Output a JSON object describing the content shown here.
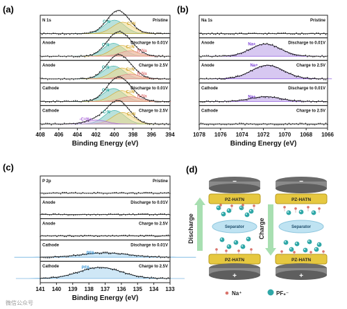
{
  "colors": {
    "frame": "#222222",
    "data_points": "#222222",
    "fit": "#111111",
    "cn_fill": "#7ec8c0",
    "cn_text": "#2aa9a0",
    "cdn_fill": "#f1d98b",
    "cdn_text": "#d1a52a",
    "nna_fill": "#f2b3b3",
    "nna_text": "#e07a7a",
    "cnplus_fill": "#d4b8e8",
    "cnplus_text": "#a35ad6",
    "na_fill": "#b69ae6",
    "na_text": "#7a3ed6",
    "pf6_fill": "#a7d3ef",
    "pf6_text": "#3a96d6",
    "electrode_gold": "#e6c840",
    "electrode_gray": "#7a7a7a",
    "separator": "#bfe3f2",
    "na_ion": "#d9736b",
    "pf6_ion": "#2fa7a7",
    "discharge_arrow": "#8fd19a",
    "charge_arrow": "#8fd19a"
  },
  "watermark": "微信公众号",
  "chart_data": [
    {
      "panel": "(a)",
      "type": "line",
      "element": "N 1s",
      "xlabel": "Binding Energy (eV)",
      "xlim": [
        408,
        394
      ],
      "xticks": [
        "408",
        "406",
        "404",
        "402",
        "400",
        "398",
        "396",
        "394"
      ],
      "stacked_spectra": [
        {
          "condition": "Pristine",
          "peaks": [
            {
              "label": "C-N",
              "center": 400.0,
              "width": 1.1,
              "height": 1.0
            },
            {
              "label": "C=N",
              "center": 399.1,
              "width": 1.1,
              "height": 0.85
            }
          ]
        },
        {
          "label_prefix": "Anode",
          "condition": "Discharge to 0.01V",
          "peaks": [
            {
              "label": "C-N",
              "center": 400.1,
              "width": 1.1,
              "height": 0.95
            },
            {
              "label": "C=N",
              "center": 399.2,
              "width": 1.1,
              "height": 0.8
            },
            {
              "label": "N-Na",
              "center": 398.3,
              "width": 1.1,
              "height": 0.4
            }
          ]
        },
        {
          "label_prefix": "Anode",
          "condition": "Charge to 2.5V",
          "peaks": [
            {
              "label": "C-N",
              "center": 400.1,
              "width": 1.1,
              "height": 0.95
            },
            {
              "label": "C=N",
              "center": 399.2,
              "width": 1.1,
              "height": 0.8
            },
            {
              "label": "N-Na",
              "center": 398.3,
              "width": 1.1,
              "height": 0.35
            }
          ]
        },
        {
          "label_prefix": "Cathode",
          "condition": "Discharge to 0.01V",
          "peaks": [
            {
              "label": "C-N",
              "center": 400.1,
              "width": 1.1,
              "height": 0.95
            },
            {
              "label": "C=N",
              "center": 399.2,
              "width": 1.1,
              "height": 0.8
            },
            {
              "label": "N-Na",
              "center": 398.3,
              "width": 1.1,
              "height": 0.35
            }
          ]
        },
        {
          "label_prefix": "Cathode",
          "condition": "Charge to 2.5V",
          "peaks": [
            {
              "label": "C-N",
              "center": 400.0,
              "width": 1.1,
              "height": 1.0
            },
            {
              "label": "C=N",
              "center": 399.1,
              "width": 1.1,
              "height": 0.85
            },
            {
              "label": "-C=N+-",
              "center": 402.0,
              "width": 1.1,
              "height": 0.3
            }
          ]
        }
      ]
    },
    {
      "panel": "(b)",
      "type": "line",
      "element": "Na 1s",
      "xlabel": "Binding Energy (eV)",
      "xlim": [
        1078,
        1066
      ],
      "xticks": [
        "1078",
        "1076",
        "1074",
        "1072",
        "1070",
        "1068",
        "1066"
      ],
      "stacked_spectra": [
        {
          "condition": "Pristine",
          "peaks": []
        },
        {
          "label_prefix": "Anode",
          "condition": "Discharge to 0.01V",
          "peaks": [
            {
              "label": "Na+",
              "center": 1071.8,
              "width": 1.4,
              "height": 0.9
            }
          ]
        },
        {
          "label_prefix": "Anode",
          "condition": "Charge to 2.5V",
          "peaks": [
            {
              "label": "Na+",
              "center": 1071.6,
              "width": 1.5,
              "height": 1.0
            }
          ]
        },
        {
          "label_prefix": "Cathode",
          "condition": "Discharge to 0.01V",
          "peaks": [
            {
              "label": "Na+",
              "center": 1071.8,
              "width": 1.4,
              "height": 0.35
            }
          ]
        },
        {
          "label_prefix": "Cathode",
          "condition": "Charge to 2.5V",
          "peaks": []
        }
      ]
    },
    {
      "panel": "(c)",
      "type": "line",
      "element": "P 2p",
      "xlabel": "Binding Energy (eV)",
      "xlim": [
        141,
        133
      ],
      "xticks": [
        "141",
        "140",
        "139",
        "138",
        "137",
        "136",
        "135",
        "134",
        "133"
      ],
      "stacked_spectra": [
        {
          "condition": "Pristine",
          "peaks": []
        },
        {
          "label_prefix": "Anode",
          "condition": "Discharge to 0.01V",
          "peaks": []
        },
        {
          "label_prefix": "Anode",
          "condition": "Charge to 2.5V",
          "peaks": []
        },
        {
          "label_prefix": "Cathode",
          "condition": "Discharge to 0.01V",
          "peaks": [
            {
              "label": "PF6-",
              "center": 137.0,
              "width": 1.4,
              "height": 0.35
            }
          ]
        },
        {
          "label_prefix": "Cathode",
          "condition": "Charge to 2.5V",
          "peaks": [
            {
              "label": "PF6-",
              "center": 137.3,
              "width": 1.3,
              "height": 0.9
            }
          ]
        }
      ]
    }
  ],
  "diagram_d": {
    "panel": "(d)",
    "top_electrode": "PZ-HATN",
    "bottom_electrode": "PZ-HATN",
    "separator": "Separator",
    "top_sign": "−",
    "bottom_sign": "+",
    "left_process": "Discharge",
    "right_process": "Charge",
    "legend": [
      {
        "label": "Na⁺",
        "symbol": "na-ion"
      },
      {
        "label": "PF₆⁻",
        "symbol": "pf6-ion"
      }
    ]
  }
}
